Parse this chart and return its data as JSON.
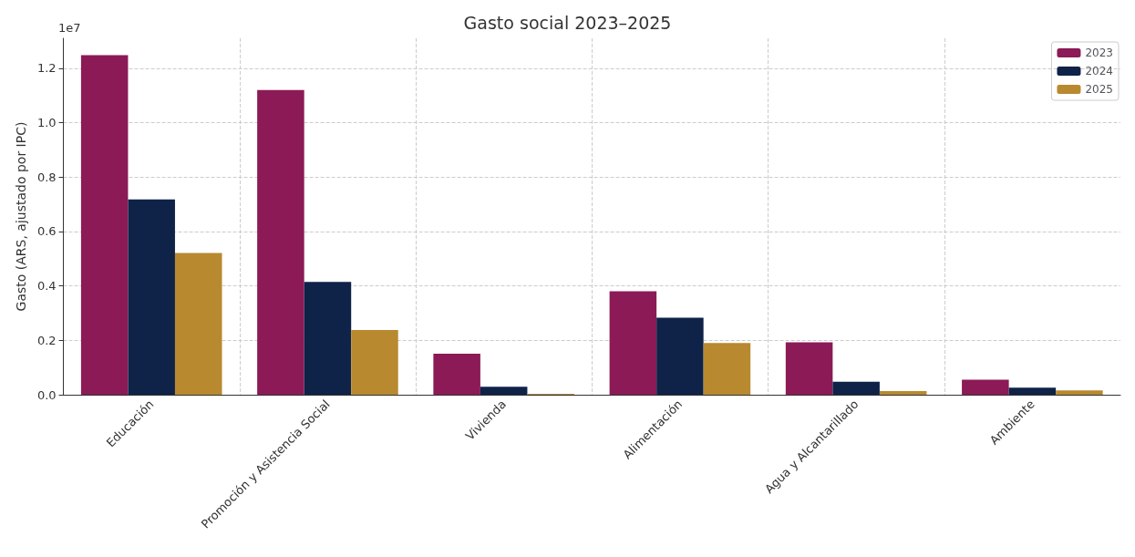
{
  "chart_data": {
    "type": "bar",
    "title": "Gasto social 2023–2025",
    "ylabel": "Gasto (ARS, ajustado por IPC)",
    "categories": [
      "Educación",
      "Promoción y Asistencia Social",
      "Vivienda",
      "Alimentación",
      "Agua y Alcantarillado",
      "Ambiente"
    ],
    "series": [
      {
        "name": "2023",
        "color": "#8b1a56",
        "values": [
          1.248,
          1.12,
          0.151,
          0.38,
          0.193,
          0.055
        ]
      },
      {
        "name": "2024",
        "color": "#0f2248",
        "values": [
          0.718,
          0.415,
          0.029,
          0.283,
          0.048,
          0.026
        ]
      },
      {
        "name": "2025",
        "color": "#b8892e",
        "values": [
          0.521,
          0.238,
          0.003,
          0.19,
          0.013,
          0.016
        ]
      }
    ],
    "ylim": [
      0,
      1.31
    ],
    "yticks": [
      {
        "value": 0,
        "label": "0.0"
      },
      {
        "value": 0.2,
        "label": "0.2"
      },
      {
        "value": 0.4,
        "label": "0.4"
      },
      {
        "value": 0.6,
        "label": "0.6"
      },
      {
        "value": 0.8,
        "label": "0.8"
      },
      {
        "value": 1.0,
        "label": "1.0"
      },
      {
        "value": 1.2,
        "label": "1.2"
      }
    ],
    "annotations": [
      "1e7"
    ],
    "grid": true,
    "legend": "top right"
  }
}
